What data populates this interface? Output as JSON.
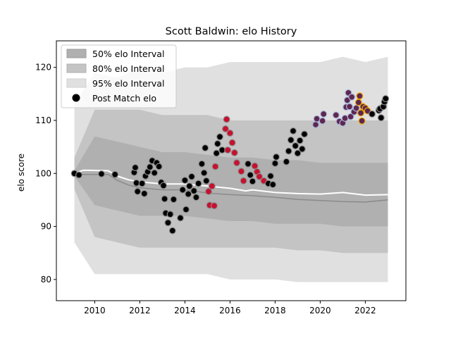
{
  "chart_data": {
    "type": "scatter",
    "title": "Scott Baldwin: elo History",
    "xlabel": "",
    "ylabel": "elo score",
    "xlim": [
      2008.3,
      2023.8
    ],
    "ylim": [
      76,
      125
    ],
    "x_ticks": [
      "2010",
      "2012",
      "2014",
      "2016",
      "2018",
      "2020",
      "2022"
    ],
    "y_ticks": [
      "80",
      "90",
      "100",
      "110",
      "120"
    ],
    "legend": {
      "placement": "top-left",
      "entries": [
        "50% elo Interval",
        "80% elo Interval",
        "95% elo Interval",
        "Post Match elo"
      ]
    },
    "colors": {
      "band50": "#b0b0b0",
      "band80": "#c4c4c4",
      "band95": "#e0e0e0",
      "mean_line": "#ffffff",
      "median_line": "#8a8a8a",
      "point_fill": "#000000",
      "point_edge_default": "#8c8c8c",
      "point_red": "#c8102e",
      "point_purple": "#5e2750",
      "edge_blue": "#a9b7dc",
      "edge_gold": "#f2a900"
    },
    "bands": {
      "x": [
        2009.1,
        2010,
        2011,
        2012,
        2013,
        2014,
        2015,
        2016,
        2017,
        2018,
        2019,
        2020,
        2021,
        2022,
        2023
      ],
      "p95_high": [
        113,
        119,
        118,
        120,
        119,
        120,
        120,
        121,
        121,
        121,
        121,
        121,
        122,
        121,
        122
      ],
      "p80_high": [
        103,
        112,
        112,
        112,
        111,
        111,
        111,
        110,
        110,
        110,
        110,
        110,
        110,
        110,
        110
      ],
      "p50_high": [
        100.5,
        107,
        106,
        105,
        104,
        104,
        103.5,
        103,
        103,
        102.5,
        102.5,
        102,
        102,
        102,
        102
      ],
      "p50_low": [
        99.5,
        94,
        93,
        92,
        92,
        92,
        91.5,
        91,
        91,
        90.5,
        90.5,
        90.5,
        90,
        90,
        90
      ],
      "p80_low": [
        97,
        88,
        87,
        86,
        86,
        86,
        86,
        86,
        86,
        86,
        85.5,
        85.5,
        85,
        85,
        85
      ],
      "p95_low": [
        87,
        81,
        81,
        81,
        81,
        81,
        81,
        80,
        80,
        80,
        79.5,
        79.5,
        79.5,
        79.5,
        79.5
      ]
    },
    "mean_line": {
      "x": [
        2009.1,
        2009.5,
        2010.6,
        2011,
        2011.5,
        2012,
        2012.5,
        2013,
        2014,
        2015,
        2016,
        2016.7,
        2017,
        2018,
        2019,
        2020,
        2021,
        2022,
        2023
      ],
      "y": [
        100,
        100.6,
        100.5,
        99.5,
        98.8,
        98.4,
        98.2,
        98.0,
        98.0,
        97.6,
        97.2,
        96.7,
        96.9,
        96.4,
        96.2,
        96.1,
        96.4,
        95.9,
        96.0
      ]
    },
    "median_line": {
      "x": [
        2009.1,
        2009.5,
        2010.6,
        2011,
        2011.5,
        2012,
        2013,
        2014,
        2015,
        2016,
        2017,
        2018,
        2019,
        2020,
        2021,
        2022,
        2023
      ],
      "y": [
        100,
        99.8,
        99.8,
        98.7,
        97.8,
        97.3,
        96.9,
        96.9,
        96.3,
        96.0,
        95.8,
        95.5,
        95.1,
        94.9,
        94.7,
        94.6,
        95.0
      ]
    },
    "points": [
      {
        "x": 2009.1,
        "y": 100.0,
        "color": "black"
      },
      {
        "x": 2009.3,
        "y": 99.7,
        "color": "black"
      },
      {
        "x": 2010.3,
        "y": 99.9,
        "color": "black"
      },
      {
        "x": 2010.9,
        "y": 99.8,
        "color": "black"
      },
      {
        "x": 2011.75,
        "y": 100.2,
        "color": "black"
      },
      {
        "x": 2011.8,
        "y": 101.1,
        "color": "black"
      },
      {
        "x": 2011.85,
        "y": 98.2,
        "color": "black"
      },
      {
        "x": 2011.9,
        "y": 96.6,
        "color": "black"
      },
      {
        "x": 2012.1,
        "y": 98.1,
        "color": "black"
      },
      {
        "x": 2012.2,
        "y": 96.2,
        "color": "black"
      },
      {
        "x": 2012.25,
        "y": 99.5,
        "color": "black"
      },
      {
        "x": 2012.35,
        "y": 100.3,
        "color": "black"
      },
      {
        "x": 2012.45,
        "y": 101.2,
        "color": "black"
      },
      {
        "x": 2012.55,
        "y": 102.4,
        "color": "black"
      },
      {
        "x": 2012.65,
        "y": 100.1,
        "color": "black"
      },
      {
        "x": 2012.75,
        "y": 102.0,
        "color": "black"
      },
      {
        "x": 2012.85,
        "y": 101.3,
        "color": "black"
      },
      {
        "x": 2012.95,
        "y": 98.3,
        "color": "black"
      },
      {
        "x": 2013.05,
        "y": 97.7,
        "color": "black"
      },
      {
        "x": 2013.1,
        "y": 95.2,
        "color": "black"
      },
      {
        "x": 2013.15,
        "y": 92.5,
        "color": "black"
      },
      {
        "x": 2013.25,
        "y": 90.7,
        "color": "black"
      },
      {
        "x": 2013.35,
        "y": 92.3,
        "color": "black"
      },
      {
        "x": 2013.45,
        "y": 89.2,
        "color": "black"
      },
      {
        "x": 2013.5,
        "y": 95.1,
        "color": "black"
      },
      {
        "x": 2013.8,
        "y": 91.6,
        "color": "black"
      },
      {
        "x": 2013.9,
        "y": 96.9,
        "color": "black"
      },
      {
        "x": 2014.0,
        "y": 98.7,
        "color": "black"
      },
      {
        "x": 2014.05,
        "y": 93.2,
        "color": "black"
      },
      {
        "x": 2014.15,
        "y": 96.1,
        "color": "black"
      },
      {
        "x": 2014.2,
        "y": 97.6,
        "color": "black"
      },
      {
        "x": 2014.3,
        "y": 99.4,
        "color": "black"
      },
      {
        "x": 2014.4,
        "y": 96.7,
        "color": "black"
      },
      {
        "x": 2014.5,
        "y": 95.5,
        "color": "black"
      },
      {
        "x": 2014.6,
        "y": 98.1,
        "color": "black"
      },
      {
        "x": 2014.75,
        "y": 101.8,
        "color": "black"
      },
      {
        "x": 2014.85,
        "y": 100.1,
        "color": "black"
      },
      {
        "x": 2014.9,
        "y": 104.8,
        "color": "black"
      },
      {
        "x": 2014.95,
        "y": 98.6,
        "color": "black"
      },
      {
        "x": 2015.05,
        "y": 96.6,
        "color": "red"
      },
      {
        "x": 2015.1,
        "y": 94.0,
        "color": "red"
      },
      {
        "x": 2015.2,
        "y": 97.6,
        "color": "red"
      },
      {
        "x": 2015.3,
        "y": 93.9,
        "color": "red"
      },
      {
        "x": 2015.35,
        "y": 101.3,
        "color": "red"
      },
      {
        "x": 2015.4,
        "y": 103.8,
        "color": "black"
      },
      {
        "x": 2015.45,
        "y": 105.6,
        "color": "black"
      },
      {
        "x": 2015.55,
        "y": 106.9,
        "color": "black"
      },
      {
        "x": 2015.65,
        "y": 104.4,
        "color": "black"
      },
      {
        "x": 2015.8,
        "y": 108.4,
        "color": "red"
      },
      {
        "x": 2015.85,
        "y": 110.2,
        "color": "red"
      },
      {
        "x": 2015.9,
        "y": 104.4,
        "color": "red"
      },
      {
        "x": 2016.0,
        "y": 107.6,
        "color": "red"
      },
      {
        "x": 2016.1,
        "y": 105.8,
        "color": "red"
      },
      {
        "x": 2016.2,
        "y": 103.9,
        "color": "red"
      },
      {
        "x": 2016.3,
        "y": 102.0,
        "color": "red"
      },
      {
        "x": 2016.5,
        "y": 100.4,
        "color": "red"
      },
      {
        "x": 2016.6,
        "y": 98.6,
        "color": "red"
      },
      {
        "x": 2016.8,
        "y": 101.8,
        "color": "black"
      },
      {
        "x": 2016.9,
        "y": 99.7,
        "color": "black"
      },
      {
        "x": 2017.0,
        "y": 98.5,
        "color": "black"
      },
      {
        "x": 2017.1,
        "y": 101.4,
        "color": "red"
      },
      {
        "x": 2017.2,
        "y": 100.3,
        "color": "red"
      },
      {
        "x": 2017.3,
        "y": 99.4,
        "color": "red"
      },
      {
        "x": 2017.5,
        "y": 98.6,
        "color": "red"
      },
      {
        "x": 2017.7,
        "y": 98.1,
        "color": "black"
      },
      {
        "x": 2017.8,
        "y": 99.5,
        "color": "black"
      },
      {
        "x": 2017.9,
        "y": 97.9,
        "color": "black"
      },
      {
        "x": 2018.0,
        "y": 101.9,
        "color": "black"
      },
      {
        "x": 2018.05,
        "y": 103.1,
        "color": "black"
      },
      {
        "x": 2018.5,
        "y": 102.2,
        "color": "black"
      },
      {
        "x": 2018.6,
        "y": 104.2,
        "color": "black"
      },
      {
        "x": 2018.7,
        "y": 106.3,
        "color": "black"
      },
      {
        "x": 2018.8,
        "y": 108.0,
        "color": "black"
      },
      {
        "x": 2018.9,
        "y": 105.2,
        "color": "black"
      },
      {
        "x": 2019.0,
        "y": 103.8,
        "color": "black"
      },
      {
        "x": 2019.1,
        "y": 106.2,
        "color": "black"
      },
      {
        "x": 2019.2,
        "y": 104.6,
        "color": "black"
      },
      {
        "x": 2019.3,
        "y": 107.4,
        "color": "black"
      },
      {
        "x": 2019.8,
        "y": 109.2,
        "color": "purple_blue"
      },
      {
        "x": 2019.85,
        "y": 110.3,
        "color": "purple_blue"
      },
      {
        "x": 2020.1,
        "y": 109.9,
        "color": "purple_blue"
      },
      {
        "x": 2020.15,
        "y": 111.2,
        "color": "purple_blue"
      },
      {
        "x": 2020.7,
        "y": 111.0,
        "color": "purple_blue"
      },
      {
        "x": 2020.85,
        "y": 109.8,
        "color": "purple_blue"
      },
      {
        "x": 2021.0,
        "y": 109.5,
        "color": "purple_blue"
      },
      {
        "x": 2021.1,
        "y": 110.4,
        "color": "purple_blue"
      },
      {
        "x": 2021.15,
        "y": 112.5,
        "color": "purple_blue"
      },
      {
        "x": 2021.2,
        "y": 113.8,
        "color": "purple_blue"
      },
      {
        "x": 2021.25,
        "y": 115.2,
        "color": "purple_blue"
      },
      {
        "x": 2021.3,
        "y": 112.6,
        "color": "purple_blue"
      },
      {
        "x": 2021.35,
        "y": 110.7,
        "color": "purple_blue"
      },
      {
        "x": 2021.4,
        "y": 114.4,
        "color": "purple_blue"
      },
      {
        "x": 2021.5,
        "y": 111.6,
        "color": "purple_blue"
      },
      {
        "x": 2021.6,
        "y": 112.3,
        "color": "purple_blue"
      },
      {
        "x": 2021.7,
        "y": 113.4,
        "color": "purple_gold"
      },
      {
        "x": 2021.75,
        "y": 114.6,
        "color": "purple_gold"
      },
      {
        "x": 2021.8,
        "y": 111.4,
        "color": "purple_gold"
      },
      {
        "x": 2021.85,
        "y": 109.9,
        "color": "purple_gold"
      },
      {
        "x": 2021.9,
        "y": 112.6,
        "color": "purple_gold"
      },
      {
        "x": 2022.0,
        "y": 112.3,
        "color": "purple_gold"
      },
      {
        "x": 2022.1,
        "y": 111.8,
        "color": "purple_gold"
      },
      {
        "x": 2022.3,
        "y": 111.2,
        "color": "black"
      },
      {
        "x": 2022.6,
        "y": 111.9,
        "color": "black"
      },
      {
        "x": 2022.65,
        "y": 112.2,
        "color": "black"
      },
      {
        "x": 2022.7,
        "y": 110.5,
        "color": "black"
      },
      {
        "x": 2022.8,
        "y": 112.6,
        "color": "black"
      },
      {
        "x": 2022.85,
        "y": 113.5,
        "color": "black"
      },
      {
        "x": 2022.9,
        "y": 114.1,
        "color": "black"
      }
    ]
  }
}
